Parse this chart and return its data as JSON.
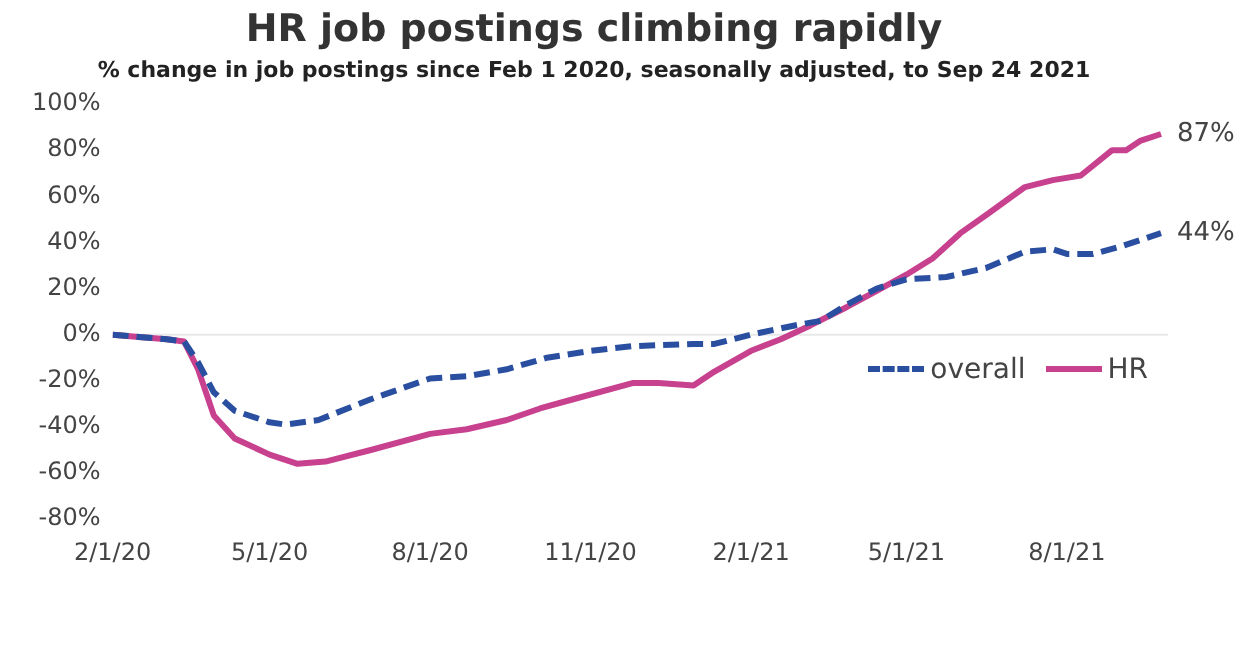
{
  "chart_data": {
    "type": "line",
    "title": "HR job postings climbing rapidly",
    "subtitle": "% change in job postings since Feb 1 2020, seasonally adjusted, to Sep 24 2021",
    "xlim": [
      "2020-02-01",
      "2021-09-28"
    ],
    "xticks": [
      {
        "value": "2020-02-01",
        "label": "2/1/20"
      },
      {
        "value": "2020-05-01",
        "label": "5/1/20"
      },
      {
        "value": "2020-08-01",
        "label": "8/1/20"
      },
      {
        "value": "2020-11-01",
        "label": "11/1/20"
      },
      {
        "value": "2021-02-01",
        "label": "2/1/21"
      },
      {
        "value": "2021-05-01",
        "label": "5/1/21"
      },
      {
        "value": "2021-08-01",
        "label": "8/1/21"
      }
    ],
    "ylim": [
      -80,
      100
    ],
    "yticks": [
      {
        "value": 100,
        "label": "100%"
      },
      {
        "value": 80,
        "label": "80%"
      },
      {
        "value": 60,
        "label": "60%"
      },
      {
        "value": 40,
        "label": "40%"
      },
      {
        "value": 20,
        "label": "20%"
      },
      {
        "value": 0,
        "label": "0%"
      },
      {
        "value": -20,
        "label": "-20%"
      },
      {
        "value": -40,
        "label": "-40%"
      },
      {
        "value": -60,
        "label": "-60%"
      },
      {
        "value": -80,
        "label": "-80%"
      }
    ],
    "grid": false,
    "legend": "right",
    "marker": "none",
    "ref_lines": [
      {
        "axis": "y",
        "value": 0,
        "color": "#e8e8e8"
      }
    ],
    "series": [
      {
        "name": "overall",
        "color": "#2a4fa0",
        "line_style": "dashed",
        "x": [
          "2020-02-01",
          "2020-02-16",
          "2020-03-03",
          "2020-03-13",
          "2020-03-21",
          "2020-03-30",
          "2020-04-11",
          "2020-05-01",
          "2020-05-10",
          "2020-05-29",
          "2020-06-28",
          "2020-08-01",
          "2020-08-22",
          "2020-09-14",
          "2020-10-07",
          "2020-11-01",
          "2020-11-25",
          "2020-12-30",
          "2021-01-11",
          "2021-02-01",
          "2021-02-26",
          "2021-03-13",
          "2021-03-28",
          "2021-04-14",
          "2021-05-01",
          "2021-05-24",
          "2021-06-16",
          "2021-07-08",
          "2021-07-24",
          "2021-08-01",
          "2021-08-16",
          "2021-08-31",
          "2021-09-24"
        ],
        "values": [
          0,
          -1,
          -2,
          -3,
          -12,
          -25,
          -33,
          -38,
          -39,
          -37,
          -28,
          -19,
          -18,
          -15,
          -10,
          -7,
          -5,
          -4,
          -4,
          0,
          4,
          6,
          13,
          20,
          24,
          25,
          29,
          36,
          37,
          35,
          35,
          38,
          44
        ]
      },
      {
        "name": "HR",
        "color": "#c8418f",
        "line_style": "solid",
        "x": [
          "2020-02-01",
          "2020-02-16",
          "2020-03-03",
          "2020-03-13",
          "2020-03-21",
          "2020-03-30",
          "2020-04-11",
          "2020-05-01",
          "2020-05-17",
          "2020-06-02",
          "2020-06-28",
          "2020-08-01",
          "2020-08-22",
          "2020-09-14",
          "2020-10-03",
          "2020-10-22",
          "2020-11-25",
          "2020-12-10",
          "2020-12-30",
          "2021-01-11",
          "2021-02-01",
          "2021-02-18",
          "2021-03-07",
          "2021-03-28",
          "2021-04-14",
          "2021-05-01",
          "2021-05-16",
          "2021-06-01",
          "2021-06-16",
          "2021-07-08",
          "2021-07-24",
          "2021-08-09",
          "2021-08-27",
          "2021-09-04",
          "2021-09-12",
          "2021-09-24"
        ],
        "values": [
          0,
          -1,
          -2,
          -3,
          -15,
          -35,
          -45,
          -52,
          -56,
          -55,
          -50,
          -43,
          -41,
          -37,
          -32,
          -28,
          -21,
          -21,
          -22,
          -16,
          -7,
          -2,
          4,
          12,
          19,
          26,
          33,
          44,
          52,
          64,
          67,
          69,
          80,
          80,
          84,
          87
        ]
      }
    ],
    "annotations": [
      {
        "text": "87%",
        "x": "2021-09-24",
        "y": 87
      },
      {
        "text": "44%",
        "x": "2021-09-24",
        "y": 44
      }
    ]
  }
}
